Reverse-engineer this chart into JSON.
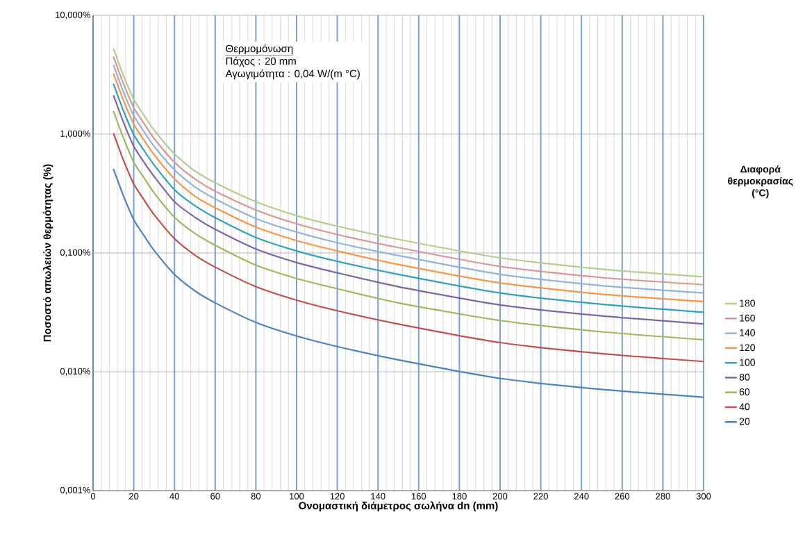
{
  "chart_data": {
    "type": "line",
    "xlabel": "Ονομαστική διάμετρος σωλήνα dn (mm)",
    "ylabel": "Ποσοστό απωλειών θερμότητας (%)",
    "legend_title": "Διαφορά θερμοκρασίας (°C)",
    "annotations": [
      "Θερμομόνωση",
      "Πάχος : 20 mm",
      "Αγωγιμότητα  : 0,04 W/(m °C)"
    ],
    "x": [
      10,
      15,
      20,
      25,
      30,
      40,
      50,
      60,
      80,
      100,
      120,
      150,
      200,
      250,
      300
    ],
    "series": [
      {
        "name": "180",
        "color": "#b3cf8d",
        "values": [
          5.25,
          3.09,
          1.96,
          1.44,
          1.08,
          0.68,
          0.49,
          0.39,
          0.27,
          0.206,
          0.168,
          0.13,
          0.091,
          0.073,
          0.063
        ]
      },
      {
        "name": "160",
        "color": "#d99694",
        "values": [
          4.49,
          2.64,
          1.67,
          1.23,
          0.92,
          0.58,
          0.42,
          0.33,
          0.23,
          0.176,
          0.143,
          0.111,
          0.077,
          0.062,
          0.054
        ]
      },
      {
        "name": "140",
        "color": "#95b3d7",
        "values": [
          3.83,
          2.25,
          1.43,
          1.05,
          0.79,
          0.5,
          0.36,
          0.285,
          0.195,
          0.15,
          0.122,
          0.095,
          0.066,
          0.053,
          0.046
        ]
      },
      {
        "name": "120",
        "color": "#f79646",
        "values": [
          3.24,
          1.91,
          1.21,
          0.89,
          0.67,
          0.42,
          0.3,
          0.24,
          0.165,
          0.127,
          0.104,
          0.08,
          0.056,
          0.045,
          0.039
        ]
      },
      {
        "name": "100",
        "color": "#31a2b8",
        "values": [
          2.65,
          1.56,
          0.99,
          0.73,
          0.55,
          0.34,
          0.25,
          0.198,
          0.135,
          0.104,
          0.085,
          0.066,
          0.046,
          0.037,
          0.0317
        ]
      },
      {
        "name": "80",
        "color": "#8064a2",
        "values": [
          2.12,
          1.25,
          0.79,
          0.58,
          0.44,
          0.27,
          0.2,
          0.158,
          0.108,
          0.083,
          0.068,
          0.052,
          0.0365,
          0.0295,
          0.0253
        ]
      },
      {
        "name": "60",
        "color": "#9bbb59",
        "values": [
          1.56,
          0.92,
          0.58,
          0.43,
          0.32,
          0.2,
          0.146,
          0.116,
          0.079,
          0.061,
          0.05,
          0.038,
          0.027,
          0.0217,
          0.0186
        ]
      },
      {
        "name": "40",
        "color": "#c0504d",
        "values": [
          1.02,
          0.6,
          0.38,
          0.28,
          0.21,
          0.132,
          0.096,
          0.076,
          0.052,
          0.04,
          0.0326,
          0.0252,
          0.0176,
          0.0142,
          0.0122
        ]
      },
      {
        "name": "20",
        "color": "#4f81bd",
        "values": [
          0.51,
          0.3,
          0.19,
          0.14,
          0.105,
          0.066,
          0.048,
          0.038,
          0.026,
          0.02,
          0.0163,
          0.0126,
          0.0088,
          0.0071,
          0.0061
        ]
      }
    ],
    "xlim": [
      0,
      300
    ],
    "xticks": [
      0,
      20,
      40,
      60,
      80,
      100,
      120,
      140,
      160,
      180,
      200,
      220,
      240,
      260,
      280,
      300
    ],
    "ylim": [
      0.001,
      10
    ],
    "yticks": [
      {
        "value": 0.001,
        "label": "0,001%"
      },
      {
        "value": 0.01,
        "label": "0,010%"
      },
      {
        "value": 0.1,
        "label": "0,100%"
      },
      {
        "value": 1,
        "label": "1,000%"
      },
      {
        "value": 10,
        "label": "10,000%"
      }
    ],
    "log": "y",
    "grid": true,
    "legend": "right",
    "marker": "none",
    "line_style": "solid"
  }
}
